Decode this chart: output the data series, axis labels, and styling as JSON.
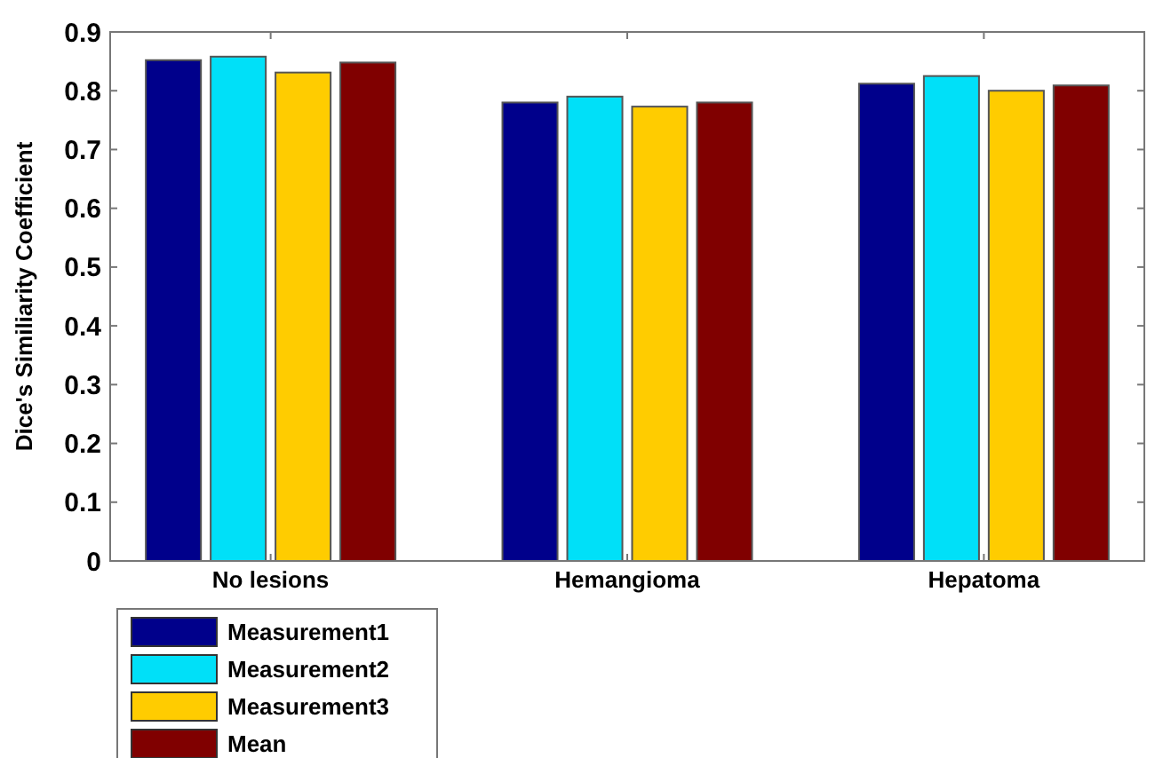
{
  "chart_data": {
    "type": "bar",
    "ylabel": "Dice's Similiarity  Coefficient",
    "categories": [
      "No lesions",
      "Hemangioma",
      "Hepatoma"
    ],
    "series": [
      {
        "name": "Measurement1",
        "color": "#00008b",
        "values": [
          0.852,
          0.78,
          0.812
        ]
      },
      {
        "name": "Measurement2",
        "color": "#00e0f8",
        "values": [
          0.858,
          0.79,
          0.825
        ]
      },
      {
        "name": "Measurement3",
        "color": "#ffcc00",
        "values": [
          0.831,
          0.773,
          0.8
        ]
      },
      {
        "name": "Mean",
        "color": "#800000",
        "values": [
          0.848,
          0.78,
          0.809
        ]
      }
    ],
    "ylim": [
      0,
      0.9
    ],
    "yticks": [
      0,
      0.1,
      0.2,
      0.3,
      0.4,
      0.5,
      0.6,
      0.7,
      0.8,
      0.9
    ],
    "grid": false,
    "legend": "bottom left"
  }
}
